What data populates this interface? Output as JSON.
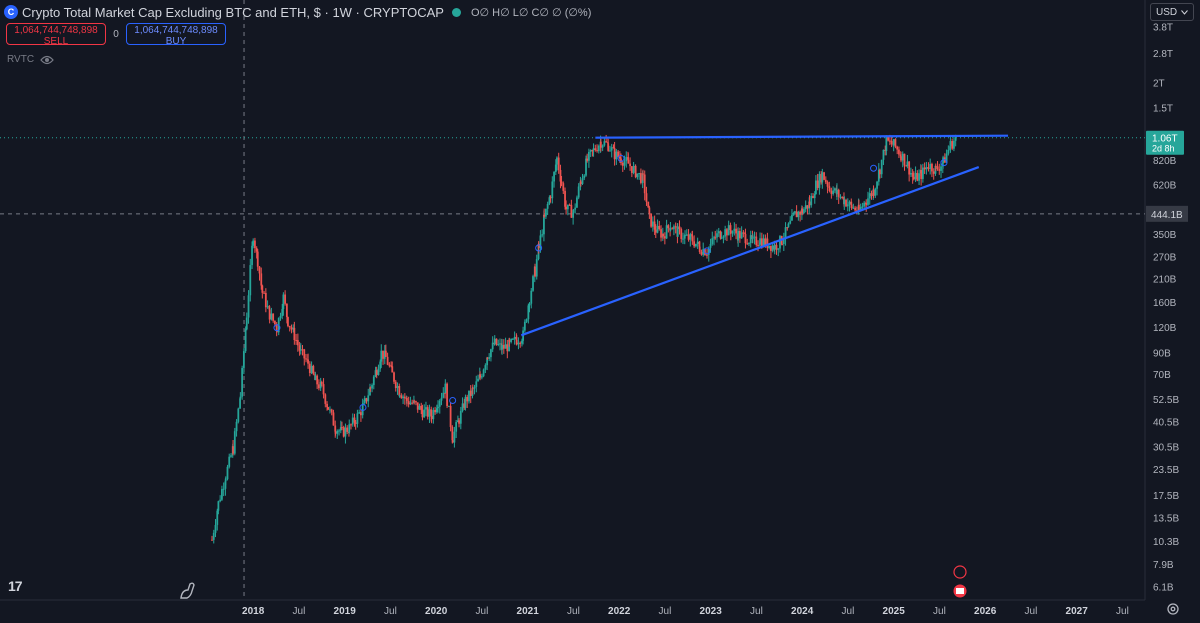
{
  "header": {
    "symbol_icon": "c-symbol-icon",
    "title": "Crypto Total Market Cap Excluding BTC and ETH, $ · 1W · CRYPTOCAP",
    "ohlc_text": "O∅ H∅ L∅ C∅ ∅ (∅%)"
  },
  "trade": {
    "sell_price": "1,064,744,748,898",
    "sell_label": "SELL",
    "spread": "0",
    "buy_price": "1,064,744,748,898",
    "buy_label": "BUY"
  },
  "indicator": {
    "name": "RVTC",
    "icon": "eye-icon"
  },
  "currency": {
    "selected": "USD",
    "icon": "chevron-down-icon"
  },
  "colors": {
    "background": "#131722",
    "up": "#26a69a",
    "down": "#ef5350",
    "trendline": "#2962ff",
    "price_label": "#26a69a",
    "crosshair_label": "#363a45"
  },
  "chart_data": {
    "type": "candlestick",
    "yscale": "log",
    "ylim": [
      5.4,
      4200
    ],
    "y_ticks": [
      {
        "label": "6.1B",
        "value": 6.1
      },
      {
        "label": "7.9B",
        "value": 7.9
      },
      {
        "label": "10.3B",
        "value": 10.3
      },
      {
        "label": "13.5B",
        "value": 13.5
      },
      {
        "label": "17.5B",
        "value": 17.5
      },
      {
        "label": "23.5B",
        "value": 23.5
      },
      {
        "label": "30.5B",
        "value": 30.5
      },
      {
        "label": "40.5B",
        "value": 40.5
      },
      {
        "label": "52.5B",
        "value": 52.5
      },
      {
        "label": "70B",
        "value": 70
      },
      {
        "label": "90B",
        "value": 90
      },
      {
        "label": "120B",
        "value": 120
      },
      {
        "label": "160B",
        "value": 160
      },
      {
        "label": "210B",
        "value": 210
      },
      {
        "label": "270B",
        "value": 270
      },
      {
        "label": "350B",
        "value": 350
      },
      {
        "label": "620B",
        "value": 620
      },
      {
        "label": "820B",
        "value": 820
      },
      {
        "label": "1.5T",
        "value": 1500
      },
      {
        "label": "2T",
        "value": 2000
      },
      {
        "label": "2.8T",
        "value": 2800
      },
      {
        "label": "3.8T",
        "value": 3800
      }
    ],
    "x_ticks": [
      {
        "label": "2018",
        "value": 2018.0,
        "bold": true
      },
      {
        "label": "Jul",
        "value": 2018.5
      },
      {
        "label": "2019",
        "value": 2019.0,
        "bold": true
      },
      {
        "label": "Jul",
        "value": 2019.5
      },
      {
        "label": "2020",
        "value": 2020.0,
        "bold": true
      },
      {
        "label": "Jul",
        "value": 2020.5
      },
      {
        "label": "2021",
        "value": 2021.0,
        "bold": true
      },
      {
        "label": "Jul",
        "value": 2021.5
      },
      {
        "label": "2022",
        "value": 2022.0,
        "bold": true
      },
      {
        "label": "Jul",
        "value": 2022.5
      },
      {
        "label": "2023",
        "value": 2023.0,
        "bold": true
      },
      {
        "label": "Jul",
        "value": 2023.5
      },
      {
        "label": "2024",
        "value": 2024.0,
        "bold": true
      },
      {
        "label": "Jul",
        "value": 2024.5
      },
      {
        "label": "2025",
        "value": 2025.0,
        "bold": true
      },
      {
        "label": "Jul",
        "value": 2025.5
      },
      {
        "label": "2026",
        "value": 2026.0,
        "bold": true
      },
      {
        "label": "Jul",
        "value": 2026.5
      },
      {
        "label": "2027",
        "value": 2027.0,
        "bold": true
      },
      {
        "label": "Jul",
        "value": 2027.5
      }
    ],
    "xlim": [
      2016.5,
      2028.0
    ],
    "price_series": [
      [
        2017.55,
        10.5
      ],
      [
        2017.62,
        16
      ],
      [
        2017.7,
        22
      ],
      [
        2017.78,
        30
      ],
      [
        2017.86,
        55
      ],
      [
        2017.93,
        140
      ],
      [
        2018.0,
        350
      ],
      [
        2018.05,
        260
      ],
      [
        2018.1,
        180
      ],
      [
        2018.18,
        140
      ],
      [
        2018.26,
        120
      ],
      [
        2018.33,
        170
      ],
      [
        2018.38,
        130
      ],
      [
        2018.45,
        110
      ],
      [
        2018.52,
        90
      ],
      [
        2018.6,
        80
      ],
      [
        2018.68,
        65
      ],
      [
        2018.75,
        60
      ],
      [
        2018.82,
        48
      ],
      [
        2018.9,
        38
      ],
      [
        2018.97,
        36
      ],
      [
        2019.05,
        38
      ],
      [
        2019.12,
        42
      ],
      [
        2019.2,
        48
      ],
      [
        2019.28,
        60
      ],
      [
        2019.35,
        75
      ],
      [
        2019.4,
        90
      ],
      [
        2019.45,
        85
      ],
      [
        2019.52,
        70
      ],
      [
        2019.6,
        58
      ],
      [
        2019.68,
        52
      ],
      [
        2019.76,
        50
      ],
      [
        2019.85,
        46
      ],
      [
        2019.95,
        44
      ],
      [
        2020.02,
        52
      ],
      [
        2020.1,
        60
      ],
      [
        2020.18,
        34
      ],
      [
        2020.25,
        42
      ],
      [
        2020.32,
        52
      ],
      [
        2020.4,
        58
      ],
      [
        2020.48,
        68
      ],
      [
        2020.56,
        88
      ],
      [
        2020.64,
        100
      ],
      [
        2020.72,
        95
      ],
      [
        2020.8,
        98
      ],
      [
        2020.88,
        105
      ],
      [
        2020.95,
        110
      ],
      [
        2021.02,
        170
      ],
      [
        2021.08,
        230
      ],
      [
        2021.12,
        300
      ],
      [
        2021.18,
        420
      ],
      [
        2021.25,
        560
      ],
      [
        2021.32,
        840
      ],
      [
        2021.37,
        640
      ],
      [
        2021.42,
        470
      ],
      [
        2021.5,
        450
      ],
      [
        2021.58,
        650
      ],
      [
        2021.65,
        820
      ],
      [
        2021.72,
        920
      ],
      [
        2021.8,
        1020
      ],
      [
        2021.88,
        980
      ],
      [
        2021.95,
        880
      ],
      [
        2022.02,
        840
      ],
      [
        2022.1,
        790
      ],
      [
        2022.18,
        720
      ],
      [
        2022.26,
        660
      ],
      [
        2022.33,
        420
      ],
      [
        2022.4,
        370
      ],
      [
        2022.48,
        350
      ],
      [
        2022.56,
        390
      ],
      [
        2022.64,
        360
      ],
      [
        2022.72,
        340
      ],
      [
        2022.8,
        330
      ],
      [
        2022.88,
        300
      ],
      [
        2022.96,
        290
      ],
      [
        2023.05,
        340
      ],
      [
        2023.12,
        360
      ],
      [
        2023.22,
        370
      ],
      [
        2023.3,
        350
      ],
      [
        2023.38,
        340
      ],
      [
        2023.46,
        320
      ],
      [
        2023.54,
        330
      ],
      [
        2023.62,
        315
      ],
      [
        2023.7,
        305
      ],
      [
        2023.78,
        330
      ],
      [
        2023.85,
        380
      ],
      [
        2023.92,
        440
      ],
      [
        2024.0,
        460
      ],
      [
        2024.08,
        500
      ],
      [
        2024.15,
        620
      ],
      [
        2024.22,
        700
      ],
      [
        2024.3,
        600
      ],
      [
        2024.38,
        560
      ],
      [
        2024.46,
        520
      ],
      [
        2024.54,
        480
      ],
      [
        2024.62,
        460
      ],
      [
        2024.7,
        520
      ],
      [
        2024.78,
        580
      ],
      [
        2024.85,
        750
      ],
      [
        2024.92,
        1020
      ],
      [
        2025.0,
        980
      ],
      [
        2025.08,
        880
      ],
      [
        2025.15,
        780
      ],
      [
        2025.22,
        660
      ],
      [
        2025.3,
        700
      ],
      [
        2025.38,
        780
      ],
      [
        2025.46,
        740
      ],
      [
        2025.54,
        800
      ],
      [
        2025.62,
        980
      ],
      [
        2025.68,
        1060
      ]
    ],
    "trendlines": [
      {
        "name": "resistance",
        "from": [
          2021.74,
          1065
        ],
        "to": [
          2026.25,
          1090
        ]
      },
      {
        "name": "support",
        "from": [
          2020.93,
          110
        ],
        "to": [
          2025.93,
          760
        ]
      }
    ],
    "last_price": {
      "label": "1.06T",
      "sub": "2d 8h",
      "value": 1064.7
    },
    "crosshair": {
      "label": "444.1B",
      "value": 444.1,
      "x": 2017.9
    }
  }
}
